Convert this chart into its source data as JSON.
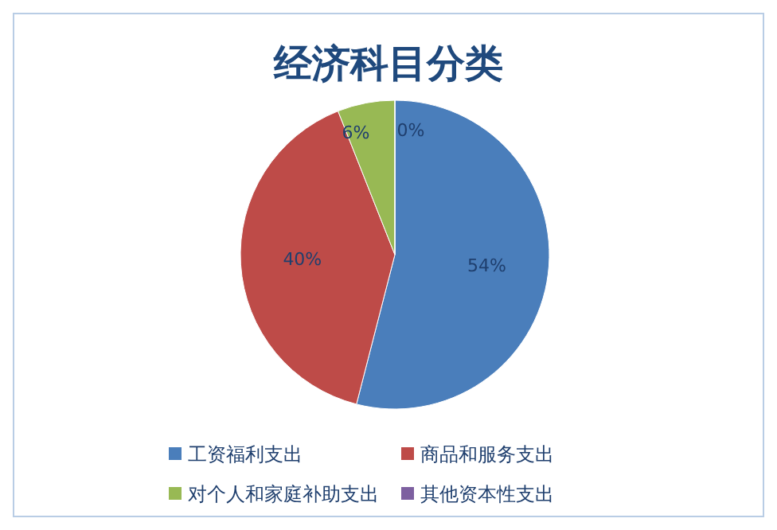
{
  "chart_data": {
    "type": "pie",
    "title": "经济科目分类",
    "categories": [
      "工资福利支出",
      "商品和服务支出",
      "对个人和家庭补助支出",
      "其他资本性支出"
    ],
    "values": [
      54,
      40,
      6,
      0
    ],
    "colors": [
      "#4a7ebb",
      "#be4b48",
      "#98b954",
      "#7d60a0"
    ],
    "value_labels": [
      "54%",
      "40%",
      "6%",
      "0%"
    ],
    "legend": "bottom"
  }
}
